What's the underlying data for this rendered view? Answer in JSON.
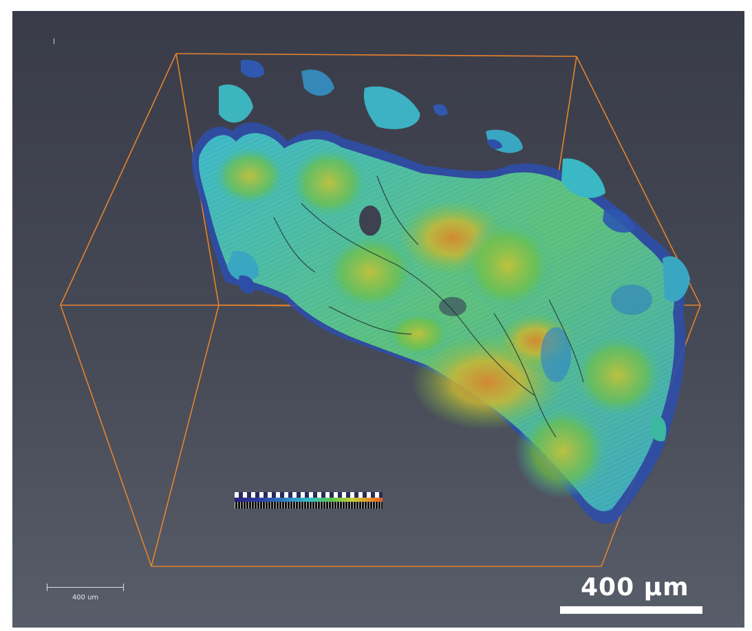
{
  "scale_bar_large": {
    "label": "400 µm"
  },
  "scale_bar_small": {
    "label": "400 um"
  },
  "colors": {
    "bounding_box": "#e8822e",
    "background_top": "#393c48",
    "background_bottom": "#585d6a",
    "surface_low": "#2c3fa8",
    "surface_mid": "#38c0c0",
    "surface_high": "#d29a2e"
  }
}
